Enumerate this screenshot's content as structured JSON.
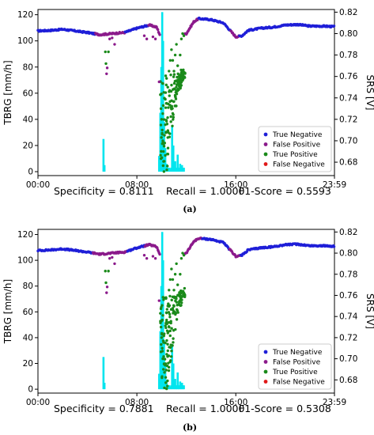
{
  "chart_data": [
    {
      "type": "scatter",
      "panel": "(a)",
      "ylabel": "TBRG [mm/h]",
      "y2label": "SRS [V]",
      "xticks": [
        "00:00",
        "08:00",
        "16:00",
        "23:59"
      ],
      "yticks": [
        0,
        20,
        40,
        60,
        80,
        100,
        120
      ],
      "y2ticks": [
        0.68,
        0.7,
        0.72,
        0.74,
        0.76,
        0.78,
        0.8,
        0.82
      ],
      "ylim": [
        -3,
        124
      ],
      "y2lim": [
        0.6675,
        0.8225
      ],
      "xlim_hours": [
        0,
        23.98
      ],
      "legend_position": "lower-right",
      "legend": [
        {
          "label": "True Negative",
          "color": "#1f1fd8"
        },
        {
          "label": "False Positive",
          "color": "#8b1a8b"
        },
        {
          "label": "True Positive",
          "color": "#1a8a1a"
        },
        {
          "label": "False Negative",
          "color": "#e01818"
        }
      ],
      "metrics": {
        "specificity": "Specificity = 0.8111",
        "recall": "Recall = 1.0000",
        "f1": "F1-Score = 0.5593"
      },
      "rain_bars": [
        {
          "hour": 5.3,
          "value": 25
        },
        {
          "hour": 5.38,
          "value": 5
        },
        {
          "hour": 9.8,
          "value": 12
        },
        {
          "hour": 9.9,
          "value": 45
        },
        {
          "hour": 9.98,
          "value": 80
        },
        {
          "hour": 10.05,
          "value": 122
        },
        {
          "hour": 10.12,
          "value": 100
        },
        {
          "hour": 10.2,
          "value": 38
        },
        {
          "hour": 10.3,
          "value": 18
        },
        {
          "hour": 10.4,
          "value": 6
        },
        {
          "hour": 10.55,
          "value": 3
        },
        {
          "hour": 10.7,
          "value": 2
        },
        {
          "hour": 10.85,
          "value": 35
        },
        {
          "hour": 10.95,
          "value": 20
        },
        {
          "hour": 11.1,
          "value": 8
        },
        {
          "hour": 11.3,
          "value": 13
        },
        {
          "hour": 11.5,
          "value": 6
        },
        {
          "hour": 11.65,
          "value": 5
        },
        {
          "hour": 11.8,
          "value": 3
        }
      ],
      "srs_profile": [
        [
          0.0,
          0.8025
        ],
        [
          1.0,
          0.803
        ],
        [
          2.0,
          0.804
        ],
        [
          3.0,
          0.8025
        ],
        [
          4.0,
          0.801
        ],
        [
          5.0,
          0.799
        ],
        [
          6.0,
          0.8
        ],
        [
          7.0,
          0.801
        ],
        [
          8.0,
          0.805
        ],
        [
          9.0,
          0.808
        ],
        [
          9.6,
          0.806
        ],
        [
          10.0,
          0.795
        ],
        [
          11.0,
          0.795
        ],
        [
          12.0,
          0.8
        ],
        [
          12.6,
          0.811
        ],
        [
          13.0,
          0.814
        ],
        [
          14.0,
          0.813
        ],
        [
          15.0,
          0.81
        ],
        [
          16.0,
          0.797
        ],
        [
          16.5,
          0.798
        ],
        [
          17.0,
          0.803
        ],
        [
          18.0,
          0.805
        ],
        [
          19.0,
          0.806
        ],
        [
          20.0,
          0.808
        ],
        [
          21.0,
          0.8085
        ],
        [
          22.0,
          0.807
        ],
        [
          23.0,
          0.807
        ],
        [
          23.98,
          0.8065
        ]
      ],
      "false_positive_windows_hours": [
        [
          4.6,
          7.0
        ],
        [
          8.9,
          9.9
        ],
        [
          11.9,
          13.0
        ],
        [
          15.6,
          16.3
        ]
      ],
      "true_positive_window_hours": [
        9.9,
        11.9
      ],
      "outlier_points": [
        [
          5.45,
          0.783
        ],
        [
          5.5,
          0.772
        ],
        [
          5.55,
          0.7625
        ],
        [
          5.6,
          0.768
        ],
        [
          5.7,
          0.783
        ],
        [
          5.8,
          0.795
        ],
        [
          6.0,
          0.796
        ],
        [
          6.2,
          0.79
        ],
        [
          8.6,
          0.798
        ],
        [
          8.8,
          0.795
        ],
        [
          9.3,
          0.797
        ],
        [
          9.5,
          0.795
        ],
        [
          9.8,
          0.755
        ],
        [
          9.9,
          0.743
        ],
        [
          9.95,
          0.73
        ],
        [
          10.0,
          0.72
        ],
        [
          10.05,
          0.71
        ],
        [
          10.1,
          0.7
        ],
        [
          10.15,
          0.69
        ],
        [
          10.2,
          0.695
        ],
        [
          10.3,
          0.715
        ],
        [
          10.4,
          0.735
        ],
        [
          10.5,
          0.75
        ],
        [
          10.6,
          0.765
        ],
        [
          10.7,
          0.775
        ],
        [
          10.8,
          0.785
        ],
        [
          10.9,
          0.775
        ],
        [
          11.0,
          0.765
        ],
        [
          11.1,
          0.78
        ],
        [
          11.2,
          0.79
        ],
        [
          11.3,
          0.77
        ],
        [
          11.4,
          0.76
        ],
        [
          11.5,
          0.78
        ],
        [
          11.6,
          0.795
        ],
        [
          11.7,
          0.8
        ],
        [
          11.8,
          0.798
        ]
      ]
    },
    {
      "type": "scatter",
      "panel": "(b)",
      "ylabel": "TBRG [mm/h]",
      "y2label": "SRS [V]",
      "xticks": [
        "00:00",
        "08:00",
        "16:00",
        "23:59"
      ],
      "yticks": [
        0,
        20,
        40,
        60,
        80,
        100,
        120
      ],
      "y2ticks": [
        0.68,
        0.7,
        0.72,
        0.74,
        0.76,
        0.78,
        0.8,
        0.82
      ],
      "ylim": [
        -3,
        124
      ],
      "y2lim": [
        0.6675,
        0.8225
      ],
      "xlim_hours": [
        0,
        23.98
      ],
      "legend_position": "lower-right",
      "legend": [
        {
          "label": "True Negative",
          "color": "#1f1fd8"
        },
        {
          "label": "False Positive",
          "color": "#8b1a8b"
        },
        {
          "label": "True Positive",
          "color": "#1a8a1a"
        },
        {
          "label": "False Negative",
          "color": "#e01818"
        }
      ],
      "metrics": {
        "specificity": "Specificity = 0.7881",
        "recall": "Recall = 1.0000",
        "f1": "F1-Score = 0.5308"
      },
      "rain_bars": [
        {
          "hour": 5.3,
          "value": 25
        },
        {
          "hour": 5.38,
          "value": 5
        },
        {
          "hour": 9.8,
          "value": 12
        },
        {
          "hour": 9.9,
          "value": 45
        },
        {
          "hour": 9.98,
          "value": 80
        },
        {
          "hour": 10.05,
          "value": 122
        },
        {
          "hour": 10.12,
          "value": 100
        },
        {
          "hour": 10.2,
          "value": 38
        },
        {
          "hour": 10.3,
          "value": 18
        },
        {
          "hour": 10.4,
          "value": 6
        },
        {
          "hour": 10.55,
          "value": 3
        },
        {
          "hour": 10.7,
          "value": 2
        },
        {
          "hour": 10.85,
          "value": 35
        },
        {
          "hour": 10.95,
          "value": 20
        },
        {
          "hour": 11.1,
          "value": 8
        },
        {
          "hour": 11.3,
          "value": 13
        },
        {
          "hour": 11.5,
          "value": 6
        },
        {
          "hour": 11.65,
          "value": 5
        },
        {
          "hour": 11.8,
          "value": 3
        }
      ],
      "srs_profile": [
        [
          0.0,
          0.8025
        ],
        [
          1.0,
          0.803
        ],
        [
          2.0,
          0.804
        ],
        [
          3.0,
          0.8025
        ],
        [
          4.0,
          0.801
        ],
        [
          5.0,
          0.799
        ],
        [
          6.0,
          0.8
        ],
        [
          7.0,
          0.801
        ],
        [
          8.0,
          0.805
        ],
        [
          9.0,
          0.808
        ],
        [
          9.6,
          0.806
        ],
        [
          10.0,
          0.795
        ],
        [
          11.0,
          0.795
        ],
        [
          12.0,
          0.8
        ],
        [
          12.6,
          0.811
        ],
        [
          13.0,
          0.814
        ],
        [
          14.0,
          0.813
        ],
        [
          15.0,
          0.81
        ],
        [
          16.0,
          0.797
        ],
        [
          16.5,
          0.798
        ],
        [
          17.0,
          0.803
        ],
        [
          18.0,
          0.805
        ],
        [
          19.0,
          0.806
        ],
        [
          20.0,
          0.808
        ],
        [
          21.0,
          0.8085
        ],
        [
          22.0,
          0.807
        ],
        [
          23.0,
          0.807
        ],
        [
          23.98,
          0.8065
        ]
      ],
      "false_positive_windows_hours": [
        [
          4.4,
          7.2
        ],
        [
          8.6,
          9.9
        ],
        [
          11.9,
          13.3
        ],
        [
          15.5,
          16.4
        ]
      ],
      "true_positive_window_hours": [
        9.9,
        11.9
      ],
      "outlier_points": [
        [
          5.45,
          0.783
        ],
        [
          5.5,
          0.772
        ],
        [
          5.55,
          0.7625
        ],
        [
          5.6,
          0.768
        ],
        [
          5.7,
          0.783
        ],
        [
          5.8,
          0.795
        ],
        [
          6.0,
          0.796
        ],
        [
          6.2,
          0.79
        ],
        [
          8.6,
          0.798
        ],
        [
          8.8,
          0.795
        ],
        [
          9.3,
          0.797
        ],
        [
          9.5,
          0.795
        ],
        [
          9.8,
          0.755
        ],
        [
          9.9,
          0.743
        ],
        [
          9.95,
          0.73
        ],
        [
          10.0,
          0.72
        ],
        [
          10.05,
          0.71
        ],
        [
          10.1,
          0.7
        ],
        [
          10.15,
          0.69
        ],
        [
          10.2,
          0.695
        ],
        [
          10.3,
          0.715
        ],
        [
          10.4,
          0.735
        ],
        [
          10.5,
          0.75
        ],
        [
          10.6,
          0.765
        ],
        [
          10.7,
          0.775
        ],
        [
          10.8,
          0.785
        ],
        [
          10.9,
          0.775
        ],
        [
          11.0,
          0.765
        ],
        [
          11.1,
          0.78
        ],
        [
          11.2,
          0.79
        ],
        [
          11.3,
          0.77
        ],
        [
          11.4,
          0.76
        ],
        [
          11.5,
          0.78
        ],
        [
          11.6,
          0.795
        ],
        [
          11.7,
          0.8
        ],
        [
          11.8,
          0.798
        ]
      ]
    }
  ]
}
